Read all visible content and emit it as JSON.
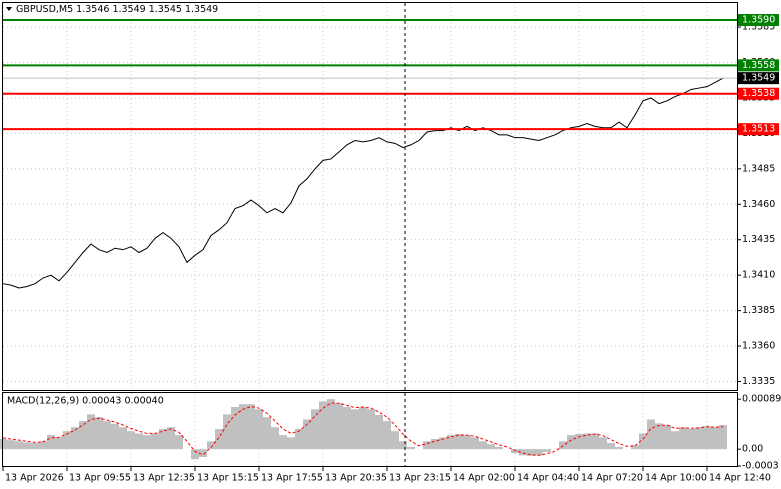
{
  "chart_data": [
    {
      "type": "line",
      "title": "GBPUSD,M5  1.3546 1.3549 1.3545 1.3549",
      "categories": [
        "13 Apr 2026",
        null,
        null,
        null,
        null,
        null,
        null,
        null,
        "13 Apr 09:55",
        null,
        null,
        null,
        null,
        null,
        null,
        null,
        "13 Apr 12:35",
        null,
        null,
        null,
        null,
        null,
        null,
        null,
        "13 Apr 15:15",
        null,
        null,
        null,
        null,
        null,
        null,
        null,
        "13 Apr 17:55",
        null,
        null,
        null,
        null,
        null,
        null,
        null,
        "13 Apr 20:35",
        null,
        null,
        null,
        null,
        null,
        null,
        null,
        "13 Apr 23:15",
        null,
        null,
        null,
        null,
        null,
        null,
        null,
        "14 Apr 02:00",
        null,
        null,
        null,
        null,
        null,
        null,
        null,
        "14 Apr 04:40",
        null,
        null,
        null,
        null,
        null,
        null,
        null,
        "14 Apr 07:20",
        null,
        null,
        null,
        null,
        null,
        null,
        null,
        "14 Apr 10:00",
        null,
        null,
        null,
        null,
        null,
        null,
        null,
        "14 Apr 12:40",
        null,
        null
      ],
      "values": [
        1.3404,
        1.3403,
        1.3401,
        1.3402,
        1.3404,
        1.3408,
        1.341,
        1.3406,
        1.3412,
        1.3419,
        1.3426,
        1.3432,
        1.3428,
        1.3426,
        1.3429,
        1.3428,
        1.343,
        1.3426,
        1.3429,
        1.3436,
        1.344,
        1.3436,
        1.343,
        1.3419,
        1.3424,
        1.3428,
        1.3438,
        1.3442,
        1.3447,
        1.3457,
        1.3459,
        1.3463,
        1.3459,
        1.3454,
        1.3457,
        1.3454,
        1.3461,
        1.3473,
        1.3478,
        1.3485,
        1.3491,
        1.3492,
        1.3497,
        1.3502,
        1.3505,
        1.3504,
        1.3505,
        1.3507,
        1.3504,
        1.3503,
        1.35,
        1.3502,
        1.3505,
        1.3511,
        1.3512,
        1.3512,
        1.3514,
        1.3512,
        1.3515,
        1.3512,
        1.3514,
        1.3512,
        1.3509,
        1.3509,
        1.3507,
        1.3507,
        1.3506,
        1.3505,
        1.3507,
        1.3509,
        1.3512,
        1.3514,
        1.3515,
        1.3517,
        1.3515,
        1.3514,
        1.3514,
        1.3518,
        1.3514,
        1.3523,
        1.3533,
        1.3535,
        1.3531,
        1.3533,
        1.3536,
        1.3538,
        1.3541,
        1.3542,
        1.3543,
        1.3546,
        1.3549
      ],
      "color": "#000000",
      "ylim": [
        1.3329,
        1.3602
      ],
      "yticks": [
        1.3585,
        {
          "value": 1.356,
          "label": "1.3560"
        },
        1.3535,
        {
          "value": 1.351,
          "label": "1.3510"
        },
        1.3485,
        {
          "value": 1.346,
          "label": "1.3460"
        },
        1.3435,
        {
          "value": 1.341,
          "label": "1.3410"
        },
        1.3385,
        {
          "value": 1.336,
          "label": "1.3360"
        },
        1.3335
      ],
      "grid": true,
      "levels": [
        {
          "value": 1.359,
          "label": "1.3590",
          "color": "#008000"
        },
        {
          "value": 1.3558,
          "label": "1.3558",
          "color": "#008000"
        },
        {
          "value": 1.3538,
          "label": "1.3538",
          "color": "#ff0000"
        },
        {
          "value": 1.3513,
          "label": "1.3513",
          "color": "#ff0000"
        }
      ],
      "current_price": {
        "value": 1.3549,
        "color": "#000000"
      }
    },
    {
      "type": "bar",
      "title": "MACD(12,26,9) 0.00043 0.00040",
      "values": [
        0.00018,
        0.00016,
        0.00014,
        0.00012,
        0.00011,
        0.00014,
        0.00025,
        0.00021,
        0.00032,
        0.00039,
        0.0005,
        0.00062,
        0.00057,
        0.0005,
        0.00045,
        0.00039,
        0.00032,
        0.00028,
        0.00025,
        0.00028,
        0.00036,
        0.00039,
        0.00025,
        0,
        -0.00018,
        -0.00014,
        0.00014,
        0.00036,
        0.00062,
        0.00075,
        0.0008,
        0.0008,
        0.00071,
        0.00057,
        0.00039,
        0.00025,
        0.00021,
        0.00036,
        0.00053,
        0.00071,
        0.00085,
        0.00089,
        0.00082,
        0.00075,
        0.00071,
        0.00075,
        0.00071,
        0.00061,
        0.0005,
        0.00032,
        0.00014,
        4e-05,
        0,
        0.00014,
        0.00018,
        0.00021,
        0.00025,
        0.00027,
        0.00025,
        0.00021,
        0.00014,
        9e-05,
        4e-05,
        0,
        -7e-05,
        -0.00011,
        -0.00012,
        -0.00011,
        -5e-05,
        0,
        0.00014,
        0.00025,
        0.00027,
        0.00028,
        0.00028,
        0.00021,
        0.00011,
        4e-05,
        0,
        7e-05,
        0.00028,
        0.00053,
        0.00046,
        0.00043,
        0.00032,
        0.00039,
        0.00036,
        0.00039,
        0.00041,
        0.00039,
        0.00043
      ],
      "color": "#c0c0c0",
      "signal": {
        "color": "#ff0000",
        "values": [
          0.0002,
          0.00018,
          0.00016,
          0.00014,
          0.00012,
          0.00013,
          0.0002,
          0.00021,
          0.00027,
          0.00034,
          0.00043,
          0.00053,
          0.00055,
          0.00052,
          0.00048,
          0.00043,
          0.00037,
          0.00032,
          0.00028,
          0.00028,
          0.00032,
          0.00036,
          0.0003,
          0.00014,
          -4e-05,
          -0.0001,
          3e-05,
          0.00021,
          0.00044,
          0.00061,
          0.00071,
          0.00076,
          0.00073,
          0.00064,
          0.0005,
          0.00036,
          0.00028,
          0.00032,
          0.00044,
          0.00059,
          0.00073,
          0.00082,
          0.00082,
          0.00078,
          0.00074,
          0.00075,
          0.00073,
          0.00066,
          0.00057,
          0.00043,
          0.00027,
          0.00014,
          6e-05,
          0.0001,
          0.00014,
          0.00018,
          0.00022,
          0.00025,
          0.00025,
          0.00023,
          0.00018,
          0.00013,
          8e-05,
          4e-05,
          -2e-05,
          -7e-05,
          -0.0001,
          -0.00011,
          -8e-05,
          -4e-05,
          6e-05,
          0.00016,
          0.00022,
          0.00025,
          0.00027,
          0.00024,
          0.00017,
          0.0001,
          5e-05,
          6e-05,
          0.00018,
          0.00037,
          0.00042,
          0.00043,
          0.00037,
          0.00038,
          0.00037,
          0.00038,
          0.0004,
          0.00039,
          0.0004
        ]
      },
      "ylim": [
        -0.0003,
        0.001
      ],
      "yticks": [
        0.00089,
        {
          "value": 0,
          "label": "0.00"
        },
        -0.0003
      ]
    }
  ]
}
